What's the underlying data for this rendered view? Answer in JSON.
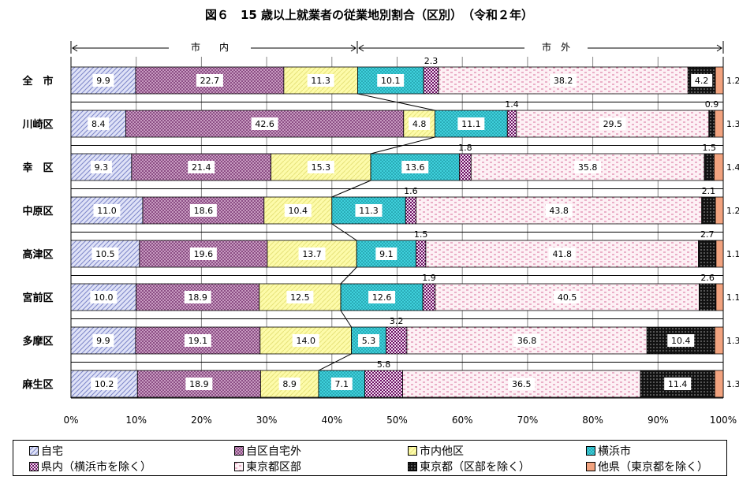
{
  "chart_data": {
    "type": "bar",
    "orientation": "horizontal",
    "stacked": true,
    "percent": true,
    "title": "図６　15 歳以上就業者の従業地別割合（区別）　（令和２年）",
    "group_labels": {
      "inner": "市　　内",
      "outer": "市　外"
    },
    "categories": [
      "全　市",
      "川崎区",
      "幸　区",
      "中原区",
      "高津区",
      "宮前区",
      "多摩区",
      "麻生区"
    ],
    "xlim": [
      0,
      100
    ],
    "xticks": [
      "0%",
      "10%",
      "20%",
      "30%",
      "40%",
      "50%",
      "60%",
      "70%",
      "80%",
      "90%",
      "100%"
    ],
    "grid": true,
    "legend_position": "bottom",
    "series": [
      {
        "name": "自宅",
        "color": "#c9cdf0",
        "values": [
          9.9,
          8.4,
          9.3,
          11.0,
          10.5,
          10.0,
          9.9,
          10.2
        ]
      },
      {
        "name": "自区自宅外",
        "color": "#a06a9a",
        "values": [
          22.7,
          42.6,
          21.4,
          18.6,
          19.6,
          18.9,
          19.1,
          18.9
        ]
      },
      {
        "name": "市内他区",
        "color": "#fdfbaa",
        "values": [
          11.3,
          4.8,
          15.3,
          10.4,
          13.7,
          12.5,
          14.0,
          8.9
        ]
      },
      {
        "name": "横浜市",
        "color": "#35c9d6",
        "values": [
          10.1,
          11.1,
          13.6,
          11.3,
          9.1,
          12.6,
          5.3,
          7.1
        ]
      },
      {
        "name": "県内（横浜市を除く）",
        "color": "#7a1f6c",
        "values": [
          2.3,
          1.4,
          1.8,
          1.6,
          1.5,
          1.9,
          3.2,
          5.8
        ]
      },
      {
        "name": "東京都区部",
        "color": "#fbe6ee",
        "values": [
          38.2,
          29.5,
          35.8,
          43.8,
          41.8,
          40.5,
          36.8,
          36.5
        ]
      },
      {
        "name": "東京都（区部を除く）",
        "color": "#111111",
        "values": [
          4.2,
          0.9,
          1.5,
          2.1,
          2.7,
          2.6,
          10.4,
          11.4
        ]
      },
      {
        "name": "他県（東京都を除く）",
        "color": "#f2a37f",
        "values": [
          1.2,
          1.3,
          1.4,
          1.2,
          1.1,
          1.1,
          1.3,
          1.3
        ]
      }
    ],
    "value_labels": [
      [
        "9.9",
        "22.7",
        "11.3",
        "10.1",
        "2.3",
        "38.2",
        "4.2",
        "1.2"
      ],
      [
        "8.4",
        "42.6",
        "4.8",
        "11.1",
        "1.4",
        "29.5",
        "0.9",
        "1.3"
      ],
      [
        "9.3",
        "21.4",
        "15.3",
        "13.6",
        "1.8",
        "35.8",
        "1.5",
        "1.4"
      ],
      [
        "11.0",
        "18.6",
        "10.4",
        "11.3",
        "1.6",
        "43.8",
        "2.1",
        "1.2"
      ],
      [
        "10.5",
        "19.6",
        "13.7",
        "9.1",
        "1.5",
        "41.8",
        "2.7",
        "1.1"
      ],
      [
        "10.0",
        "18.9",
        "12.5",
        "12.6",
        "1.9",
        "40.5",
        "2.6",
        "1.1"
      ],
      [
        "9.9",
        "19.1",
        "14.0",
        "5.3",
        "3.2",
        "36.8",
        "10.4",
        "1.3"
      ],
      [
        "10.2",
        "18.9",
        "8.9",
        "7.1",
        "5.8",
        "36.5",
        "11.4",
        "1.3"
      ]
    ]
  }
}
